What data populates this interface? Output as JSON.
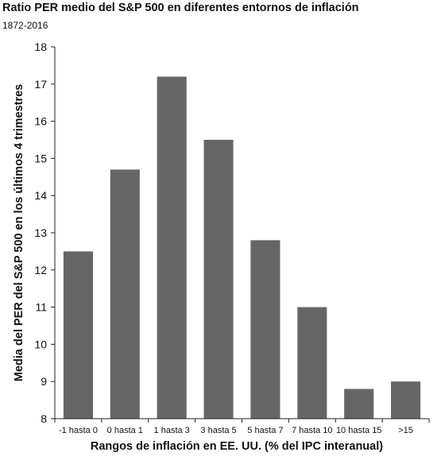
{
  "chart_data": {
    "type": "bar",
    "title": "Ratio PER medio del S&P 500 en diferentes entornos de inflación",
    "subtitle": "1872-2016",
    "xlabel": "Rangos de inflación en EE. UU. (% del IPC interanual)",
    "ylabel": "Media del PER del S&P 500 en los últimos 4 trimestres",
    "categories": [
      "-1 hasta 0",
      "0 hasta 1",
      "1 hasta 3",
      "3 hasta 5",
      "5 hasta 7",
      "7 hasta 10",
      "10 hasta 15",
      ">15"
    ],
    "values": [
      12.5,
      14.7,
      17.2,
      15.5,
      12.8,
      11.0,
      8.8,
      9.0
    ],
    "ylim": [
      8,
      18
    ],
    "yticks": [
      "8",
      "9",
      "10",
      "11",
      "12",
      "13",
      "14",
      "15",
      "16",
      "17",
      "18"
    ],
    "grid": false,
    "legend": "none",
    "colors": {
      "bar": "#666666",
      "axis": "#222222"
    }
  }
}
